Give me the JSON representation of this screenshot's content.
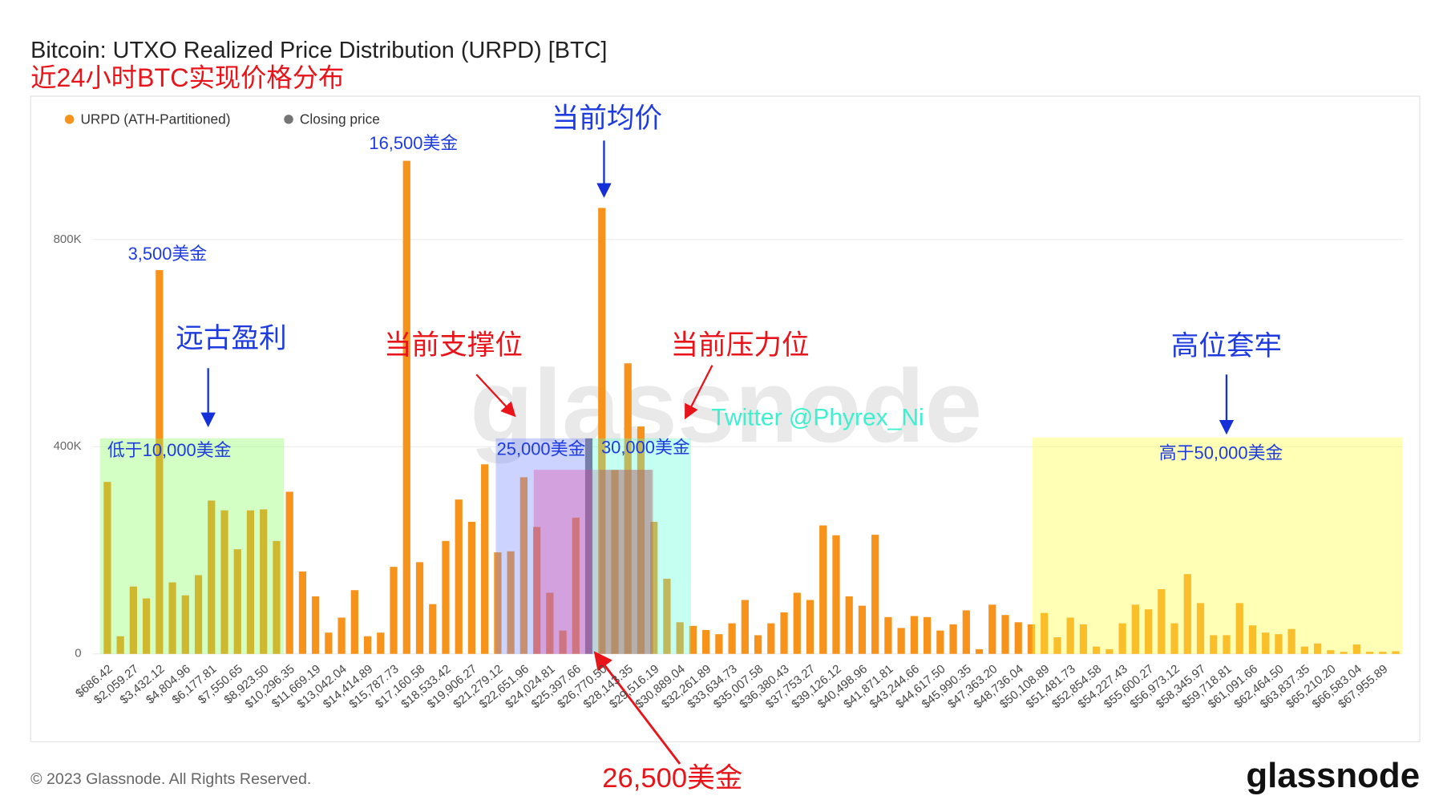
{
  "chart_data": {
    "type": "bar",
    "title": "Bitcoin: UTXO Realized Price Distribution (URPD) [BTC]",
    "subtitle": "近24小时BTC实现价格分布",
    "footer": "© 2023 Glassnode. All Rights Reserved.",
    "logo": "glassnode",
    "watermark": "glassnode",
    "categories": [
      "$686.42",
      null,
      "$2,059.27",
      null,
      "$3,432.12",
      null,
      "$4,804.96",
      null,
      "$6,177.81",
      null,
      "$7,550.65",
      null,
      "$8,923.50",
      null,
      "$10,296.35",
      null,
      "$11,669.19",
      null,
      "$13,042.04",
      null,
      "$14,414.89",
      null,
      "$15,787.73",
      null,
      "$17,160.58",
      null,
      "$18,533.42",
      null,
      "$19,906.27",
      null,
      "$21,279.12",
      null,
      "$22,651.96",
      null,
      "$24,024.81",
      null,
      "$25,397.66",
      null,
      "$26,770.50",
      null,
      "$28,143.35",
      null,
      "$29,516.19",
      null,
      "$30,889.04",
      null,
      "$32,261.89",
      null,
      "$33,634.73",
      null,
      "$35,007.58",
      null,
      "$36,380.43",
      null,
      "$37,753.27",
      null,
      "$39,126.12",
      null,
      "$40,498.96",
      null,
      "$41,871.81",
      null,
      "$43,244.66",
      null,
      "$44,617.50",
      null,
      "$45,990.35",
      null,
      "$47,363.20",
      null,
      "$48,736.04",
      null,
      "$50,108.89",
      null,
      "$51,481.73",
      null,
      "$52,854.58",
      null,
      "$54,227.43",
      null,
      "$55,600.27",
      null,
      "$56,973.12",
      null,
      "$58,345.97",
      null,
      "$59,718.81",
      null,
      "$61,091.66",
      null,
      "$62,464.50",
      null,
      "$63,837.35",
      null,
      "$65,210.20",
      null,
      "$66,583.04",
      null,
      "$67,955.89",
      null
    ],
    "series": [
      {
        "name": "URPD (ATH-Partitioned)",
        "color": "#f7931a",
        "values": [
          332000,
          34000,
          130000,
          107000,
          741000,
          138000,
          113000,
          152000,
          296000,
          277000,
          202000,
          277000,
          279000,
          218000,
          313000,
          159000,
          111000,
          41000,
          70000,
          123000,
          34000,
          41000,
          168000,
          952000,
          177000,
          96000,
          218000,
          298000,
          255000,
          366000,
          196000,
          198000,
          341000,
          245000,
          118000,
          45000,
          263000,
          null,
          861000,
          355000,
          561000,
          439000,
          255000,
          145000,
          61000,
          54000,
          46000,
          38000,
          59000,
          104000,
          36000,
          59000,
          80000,
          118000,
          104000,
          248000,
          229000,
          111000,
          93000,
          230000,
          71000,
          50000,
          73000,
          71000,
          45000,
          57000,
          84000,
          9000,
          95000,
          75000,
          61000,
          57000,
          79000,
          32000,
          70000,
          57000,
          14000,
          9000,
          59000,
          95000,
          86000,
          125000,
          59000,
          154000,
          98000,
          36000,
          36000,
          98000,
          55000,
          41000,
          38000,
          48000,
          14000,
          20000,
          7000,
          4000,
          18000,
          4000,
          4000,
          5000
        ]
      },
      {
        "name": "Closing price",
        "color": "#757575",
        "values": [
          null,
          null,
          null,
          null,
          null,
          null,
          null,
          null,
          null,
          null,
          null,
          null,
          null,
          null,
          null,
          null,
          null,
          null,
          null,
          null,
          null,
          null,
          null,
          null,
          null,
          null,
          null,
          null,
          null,
          null,
          null,
          null,
          null,
          null,
          null,
          null,
          null,
          416000,
          null,
          null,
          null,
          null,
          null,
          null,
          null,
          null,
          null,
          null,
          null,
          null,
          null,
          null,
          null,
          null,
          null,
          null,
          null,
          null,
          null,
          null,
          null,
          null,
          null,
          null,
          null,
          null,
          null,
          null,
          null,
          null,
          null,
          null,
          null,
          null,
          null,
          null,
          null,
          null,
          null,
          null,
          null,
          null,
          null,
          null,
          null,
          null,
          null,
          null,
          null,
          null,
          null,
          null,
          null,
          null,
          null,
          null,
          null,
          null,
          null,
          null
        ]
      }
    ],
    "ylim": [
      0,
      1000000
    ],
    "yticks": [
      0,
      {
        "value": 400000,
        "label": "400K"
      },
      {
        "value": 800000,
        "label": "800K"
      }
    ],
    "grid": true,
    "legend": "top-left",
    "annotations": [
      "3,500美金",
      "16,500美金",
      "当前均价",
      "远古盈利",
      "当前支撑位",
      "当前压力位",
      "高位套牢",
      "低于10,000美金",
      "25,000美金",
      "30,000美金",
      "高于50,000美金",
      "Twitter @Phyrex_Ni",
      "26,500美金"
    ]
  }
}
